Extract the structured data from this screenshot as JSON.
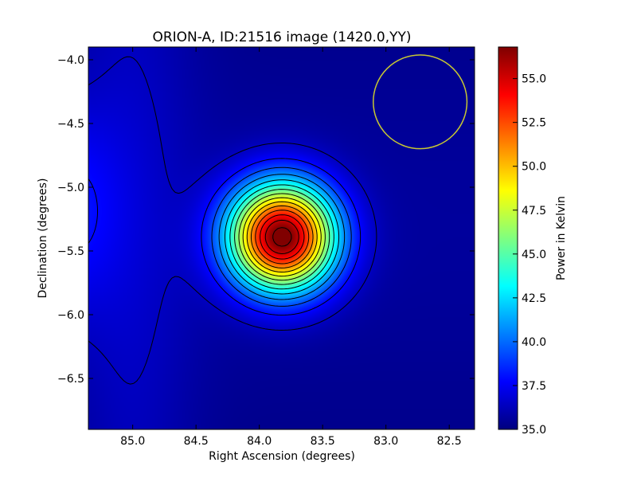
{
  "chart_data": {
    "type": "heatmap",
    "title": "ORION-A, ID:21516 image (1420.0,YY)",
    "xlabel": "Right Ascension (degrees)",
    "ylabel": "Declination (degrees)",
    "xlim": [
      85.35,
      82.3
    ],
    "ylim": [
      -6.9,
      -3.9
    ],
    "x_ticks": [
      {
        "value": 85.0,
        "label": "85.0"
      },
      {
        "value": 84.5,
        "label": "84.5"
      },
      {
        "value": 84.0,
        "label": "84.0"
      },
      {
        "value": 83.5,
        "label": "83.5"
      },
      {
        "value": 83.0,
        "label": "83.0"
      },
      {
        "value": 82.5,
        "label": "82.5"
      }
    ],
    "y_ticks": [
      {
        "value": -4.0,
        "label": "−4.0"
      },
      {
        "value": -4.5,
        "label": "−4.5"
      },
      {
        "value": -5.0,
        "label": "−5.0"
      },
      {
        "value": -5.5,
        "label": "−5.5"
      },
      {
        "value": -6.0,
        "label": "−6.0"
      },
      {
        "value": -6.5,
        "label": "−6.5"
      }
    ],
    "colorbar": {
      "label": "Power in Kelvin",
      "colormap": "jet",
      "range": [
        35.0,
        56.8
      ],
      "ticks": [
        {
          "value": 35.0,
          "label": "35.0"
        },
        {
          "value": 37.5,
          "label": "37.5"
        },
        {
          "value": 40.0,
          "label": "40.0"
        },
        {
          "value": 42.5,
          "label": "42.5"
        },
        {
          "value": 45.0,
          "label": "45.0"
        },
        {
          "value": 47.5,
          "label": "47.5"
        },
        {
          "value": 50.0,
          "label": "50.0"
        },
        {
          "value": 52.5,
          "label": "52.5"
        },
        {
          "value": 55.0,
          "label": "55.0"
        }
      ]
    },
    "peak": {
      "ra": 83.82,
      "dec": -5.39,
      "value": 56.8
    },
    "beam_circle": {
      "ra": 82.73,
      "dec": -4.33,
      "radius_deg": 0.37,
      "color": "#c8c832"
    },
    "contour_color": "#000000"
  }
}
